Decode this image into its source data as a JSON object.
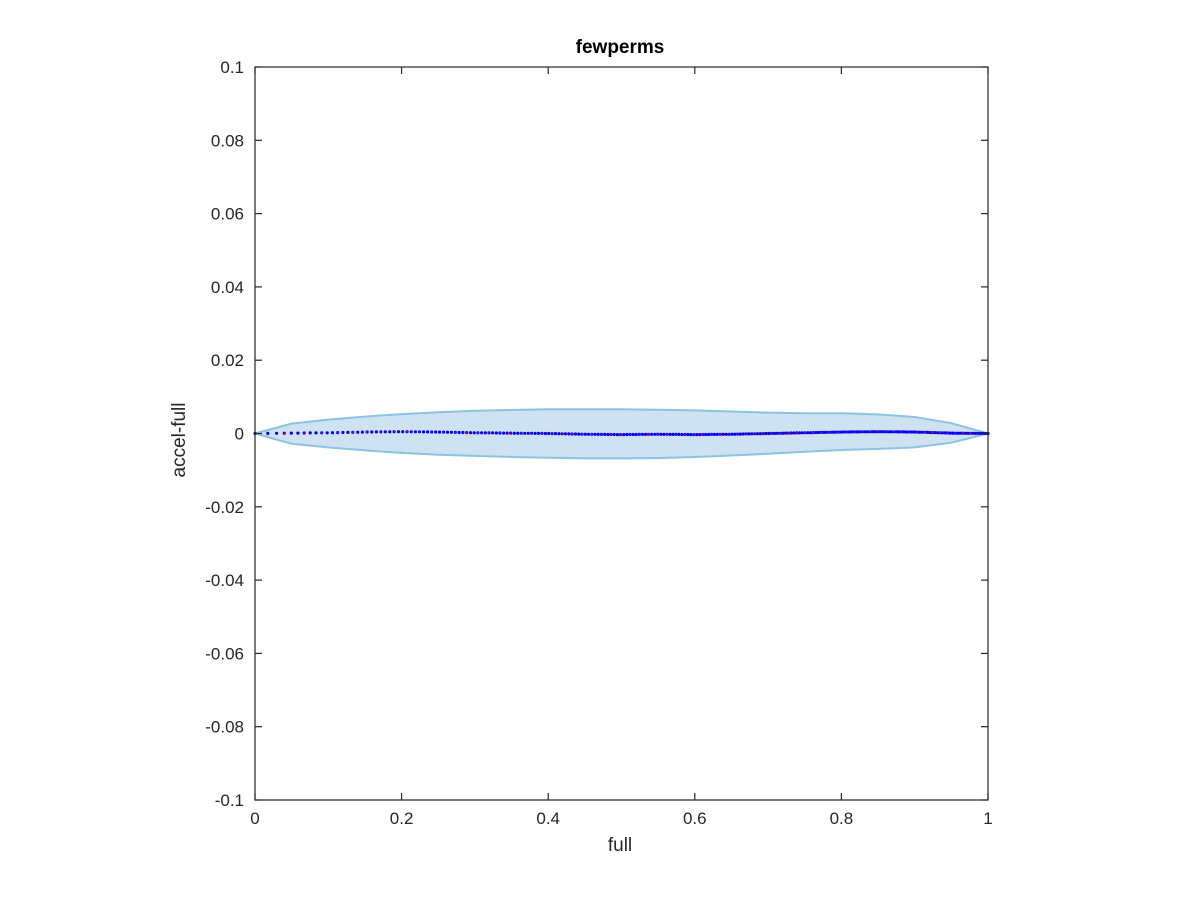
{
  "chart_data": {
    "type": "area",
    "title": "fewperms",
    "xlabel": "full",
    "ylabel": "accel-full",
    "xlim": [
      0,
      1
    ],
    "ylim": [
      -0.1,
      0.1
    ],
    "xticks": [
      "0",
      "0.2",
      "0.4",
      "0.6",
      "0.8",
      "1"
    ],
    "yticks": [
      "-0.1",
      "-0.08",
      "-0.06",
      "-0.04",
      "-0.02",
      "0",
      "0.02",
      "0.04",
      "0.06",
      "0.08",
      "0.1"
    ],
    "grid": false,
    "colors": {
      "band_fill": "#cfe2f1",
      "band_edge": "#8cc3e0",
      "points": "#0000ff",
      "mean_points": "#ff0000",
      "axes": "#262626"
    },
    "series": [
      {
        "kind": "band",
        "x": [
          0,
          0.05,
          0.1,
          0.15,
          0.2,
          0.25,
          0.3,
          0.35,
          0.4,
          0.45,
          0.5,
          0.55,
          0.6,
          0.65,
          0.7,
          0.75,
          0.8,
          0.85,
          0.9,
          0.95,
          1.0
        ],
        "upper": [
          0.0,
          0.0027,
          0.0038,
          0.0046,
          0.0053,
          0.0058,
          0.0062,
          0.0064,
          0.0066,
          0.0066,
          0.0066,
          0.0065,
          0.0063,
          0.006,
          0.0057,
          0.0055,
          0.0055,
          0.0052,
          0.0045,
          0.0028,
          0.0
        ],
        "lower": [
          0.0,
          -0.0028,
          -0.0038,
          -0.0046,
          -0.0053,
          -0.0058,
          -0.0061,
          -0.0064,
          -0.0066,
          -0.0068,
          -0.0068,
          -0.0067,
          -0.0064,
          -0.006,
          -0.0055,
          -0.005,
          -0.0045,
          -0.0042,
          -0.0038,
          -0.0025,
          0.0
        ]
      },
      {
        "kind": "points",
        "x": [
          0,
          0.05,
          0.1,
          0.15,
          0.2,
          0.25,
          0.3,
          0.35,
          0.4,
          0.45,
          0.5,
          0.55,
          0.6,
          0.65,
          0.7,
          0.75,
          0.8,
          0.85,
          0.9,
          0.95,
          1.0
        ],
        "y": [
          0.0,
          0.0001,
          0.0002,
          0.0004,
          0.0005,
          0.0004,
          0.0002,
          0.0001,
          0.0,
          -0.0002,
          -0.0003,
          -0.0002,
          -0.0003,
          -0.0002,
          0.0,
          0.0002,
          0.0004,
          0.0005,
          0.0004,
          0.0001,
          0.0
        ]
      }
    ]
  }
}
